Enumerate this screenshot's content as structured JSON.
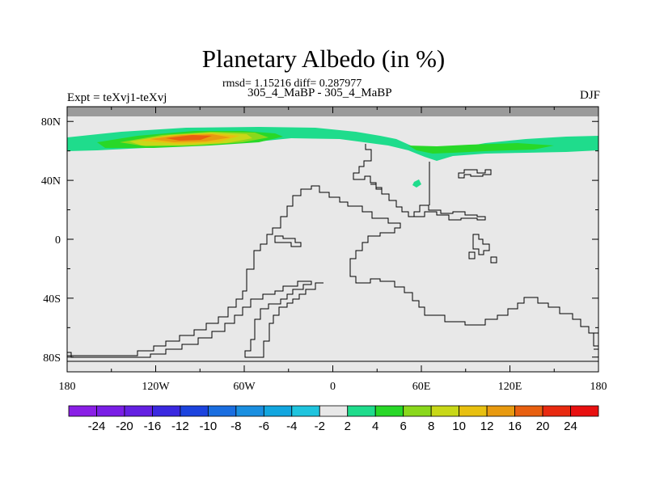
{
  "title": "Planetary Albedo (in %)",
  "stats": "rmsd= 1.15216  diff= 0.287977",
  "subtitle": "305_4_MaBP - 305_4_MaBP",
  "left_label": "Expt = teXvj1-teXvj",
  "right_label": "DJF",
  "colors": {
    "background_field": "#e8e8e8",
    "missing_band": "#9a9a9a",
    "coastline": "#000000"
  },
  "chart_data": {
    "type": "heatmap",
    "projection": "cylindrical-equidistant",
    "title": "Planetary Albedo (in %)",
    "x_axis": {
      "min": -180,
      "max": 180,
      "ticks": [
        -180,
        -120,
        -60,
        0,
        60,
        120,
        180
      ],
      "tick_labels": [
        "180",
        "120W",
        "60W",
        "0",
        "60E",
        "120E",
        "180"
      ]
    },
    "y_axis": {
      "min": -90,
      "max": 90,
      "ticks": [
        80,
        40,
        0,
        -40,
        -80
      ],
      "tick_labels": [
        "80N",
        "40N",
        "0",
        "40S",
        "80S"
      ]
    },
    "colorbar": {
      "levels": [
        "-24",
        "-20",
        "-16",
        "-12",
        "-10",
        "-8",
        "-6",
        "-4",
        "-2",
        "2",
        "4",
        "6",
        "8",
        "10",
        "12",
        "16",
        "20",
        "24"
      ],
      "colors": [
        "#8a1fe6",
        "#7a1ee6",
        "#6420e2",
        "#3a28e0",
        "#1c43de",
        "#1a6ee0",
        "#1a8fe0",
        "#12a6df",
        "#1fc4de",
        "#e8e8e8",
        "#1fdc8c",
        "#28d828",
        "#8ad81c",
        "#c8d818",
        "#e8c010",
        "#e89a10",
        "#e86010",
        "#e82a10",
        "#e81010"
      ]
    },
    "anomaly_regions": [
      {
        "name": "northern-high-latitude-band",
        "lon_range": [
          -180,
          180
        ],
        "lat_range": [
          55,
          72
        ],
        "value_range": "2 to 6"
      },
      {
        "name": "north-pacific-maximum",
        "lon_range": [
          -150,
          -60
        ],
        "lat_range": [
          60,
          72
        ],
        "value_range": "8 to 16"
      },
      {
        "name": "small-patch-central-asia",
        "lon": 57,
        "lat": 37,
        "value_range": "2 to 4"
      }
    ]
  }
}
